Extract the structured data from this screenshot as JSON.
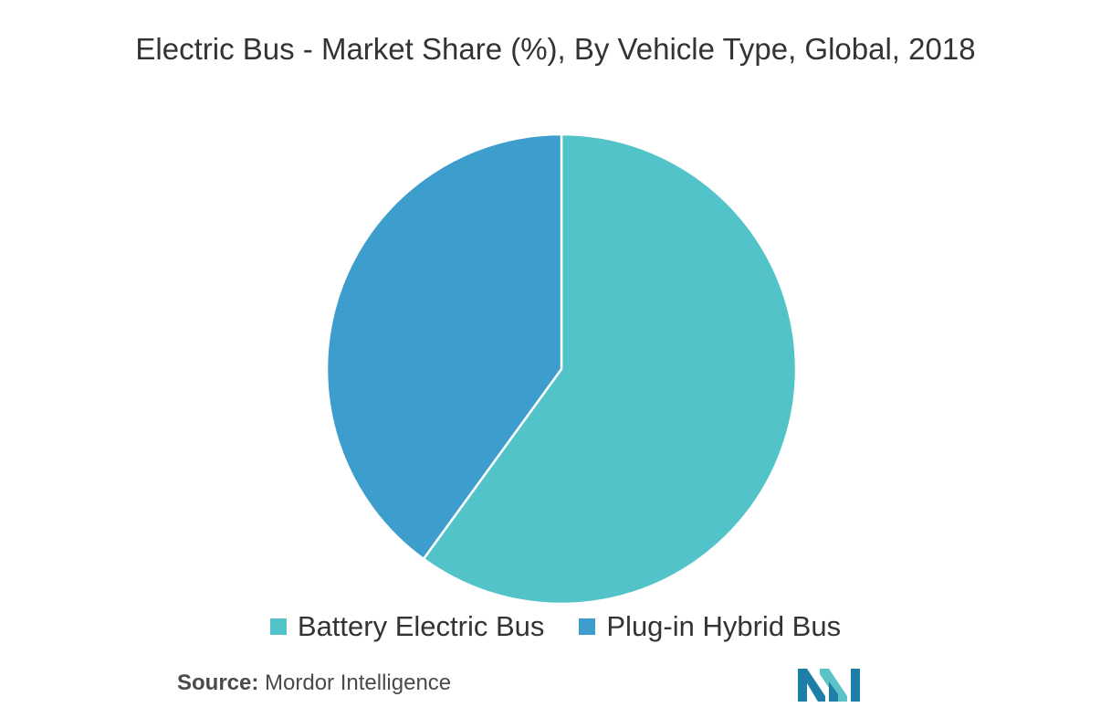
{
  "title": "Electric Bus - Market Share (%), By Vehicle Type, Global, 2018",
  "source": {
    "label": "Source:",
    "text": "Mordor Intelligence"
  },
  "logo": {
    "icon": "mordor-intelligence-logo",
    "colors": [
      "#1f7ea5",
      "#5bc3c8"
    ]
  },
  "chart_data": {
    "type": "pie",
    "title": "Electric Bus - Market Share (%), By Vehicle Type, Global, 2018",
    "start_angle": "12 o'clock, clockwise",
    "legend_position": "bottom",
    "slices": [
      {
        "label": "Battery Electric Bus",
        "value": 60,
        "color": "#52c3c8"
      },
      {
        "label": "Plug-in Hybrid Bus",
        "value": 40,
        "color": "#3d9dcd"
      }
    ]
  }
}
